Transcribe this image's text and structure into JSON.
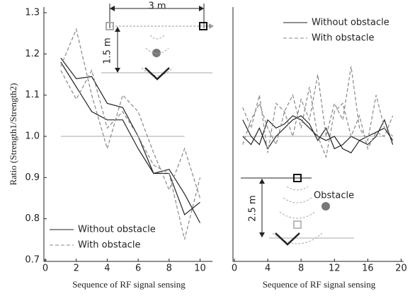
{
  "chart_data": [
    {
      "type": "line",
      "y_label": "Ratio (Strength1/Strength2)",
      "x_label": "Sequence of RF signal sensing",
      "x": [
        1,
        2,
        3,
        4,
        5,
        6,
        7,
        8,
        9,
        10
      ],
      "xlim": [
        0,
        10.8
      ],
      "xticks": [
        0,
        2,
        4,
        6,
        8,
        10
      ],
      "ylim": [
        0.7,
        1.3
      ],
      "yticks": [
        {
          "value": 0.7,
          "label": "0.7"
        },
        {
          "value": 0.8,
          "label": "0.8"
        },
        {
          "value": 0.9,
          "label": "0.9"
        },
        {
          "value": 1.0,
          "label": "1.0"
        },
        {
          "value": 1.1,
          "label": "1.1"
        },
        {
          "value": 1.2,
          "label": "1.2"
        },
        {
          "value": 1.3,
          "label": "1.3"
        }
      ],
      "reference": 1.0,
      "legend": "lower left",
      "annotations": [
        "3 m",
        "1.5 m"
      ],
      "series": [
        {
          "name": "Without obstacle",
          "color": "#222222",
          "dash": false,
          "lines": [
            [
              1.19,
              1.14,
              1.145,
              1.08,
              1.07,
              1.0,
              0.91,
              0.91,
              0.81,
              0.84
            ],
            [
              1.18,
              1.12,
              1.06,
              1.04,
              1.04,
              0.97,
              0.91,
              0.92,
              0.86,
              0.79
            ]
          ]
        },
        {
          "name": "With obstacle",
          "color": "#888888",
          "dash": true,
          "lines": [
            [
              1.17,
              1.26,
              1.1,
              0.97,
              1.1,
              1.06,
              0.96,
              0.87,
              0.97,
              0.85
            ],
            [
              1.16,
              1.09,
              1.16,
              1.02,
              1.06,
              1.0,
              0.93,
              0.91,
              0.75,
              0.9
            ]
          ]
        }
      ]
    },
    {
      "type": "line",
      "x_label": "Sequence of RF signal sensing",
      "x": [
        1,
        2,
        3,
        4,
        5,
        6,
        7,
        8,
        9,
        10,
        11,
        12,
        13,
        14,
        15,
        16,
        17,
        18,
        19
      ],
      "xlim": [
        0,
        20.3
      ],
      "xticks": [
        0,
        4,
        8,
        12,
        16,
        20
      ],
      "ylim": [
        0.7,
        1.3
      ],
      "reference": 1.0,
      "legend": "upper center",
      "annotations": [
        "2.5 m",
        "Obstacle"
      ],
      "series": [
        {
          "name": "Without obstacle",
          "color": "#222222",
          "dash": false,
          "lines": [
            [
              1.04,
              1.0,
              0.98,
              1.04,
              1.02,
              1.03,
              1.05,
              1.04,
              1.02,
              1.0,
              0.99,
              1.0,
              0.97,
              0.96,
              0.99,
              1.0,
              1.01,
              1.02,
              0.99
            ],
            [
              1.0,
              0.98,
              1.02,
              0.97,
              1.0,
              1.02,
              1.04,
              1.05,
              1.03,
              0.99,
              1.02,
              0.97,
              0.98,
              1.0,
              0.99,
              0.98,
              1.0,
              1.04,
              0.98
            ]
          ]
        },
        {
          "name": "With obstacle",
          "color": "#888888",
          "dash": true,
          "lines": [
            [
              1.07,
              1.02,
              1.1,
              0.96,
              1.08,
              1.06,
              1.0,
              1.09,
              1.04,
              1.15,
              1.0,
              1.08,
              1.04,
              1.17,
              1.02,
              0.99,
              1.1,
              1.02,
              1.0
            ],
            [
              0.98,
              1.04,
              1.08,
              1.02,
              0.98,
              1.06,
              1.1,
              1.02,
              1.12,
              1.0,
              0.95,
              1.06,
              1.08,
              1.0,
              1.05,
              0.97,
              1.01,
              1.0,
              1.05
            ]
          ]
        }
      ]
    }
  ]
}
